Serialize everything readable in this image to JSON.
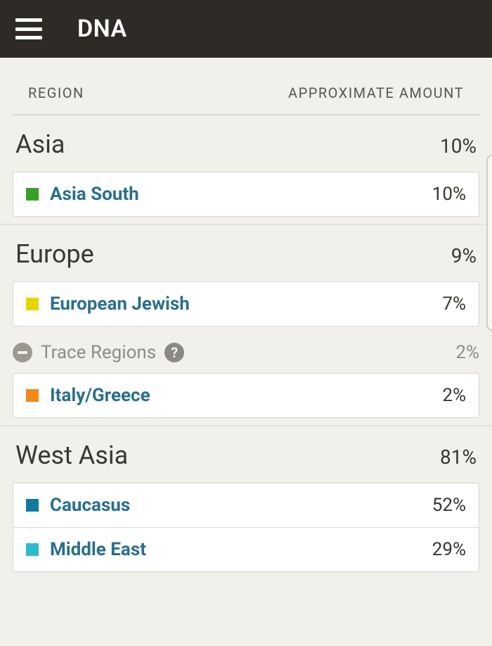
{
  "header": {
    "title": "DNA"
  },
  "columns": {
    "region": "REGION",
    "amount": "APPROXIMATE AMOUNT"
  },
  "groups": [
    {
      "name": "Asia",
      "percent": "10%",
      "items": [
        {
          "label": "Asia South",
          "percent": "10%",
          "swatch": "#3aa02c"
        }
      ]
    },
    {
      "name": "Europe",
      "percent": "9%",
      "items": [
        {
          "label": "European Jewish",
          "percent": "7%",
          "swatch": "#e8d500"
        }
      ],
      "trace": {
        "label": "Trace Regions",
        "percent": "2%"
      },
      "traceItems": [
        {
          "label": "Italy/Greece",
          "percent": "2%",
          "swatch": "#f08a1a"
        }
      ]
    },
    {
      "name": "West Asia",
      "percent": "81%",
      "items": [
        {
          "label": "Caucasus",
          "percent": "52%",
          "swatch": "#127a9c"
        },
        {
          "label": "Middle East",
          "percent": "29%",
          "swatch": "#2dbad0"
        }
      ]
    }
  ],
  "colors": {
    "headerBg": "#2e2b26",
    "pageBg": "#f1f0eb",
    "linkColor": "#2a6f8e",
    "textColor": "#3a3731",
    "muted": "#8f8c85"
  }
}
